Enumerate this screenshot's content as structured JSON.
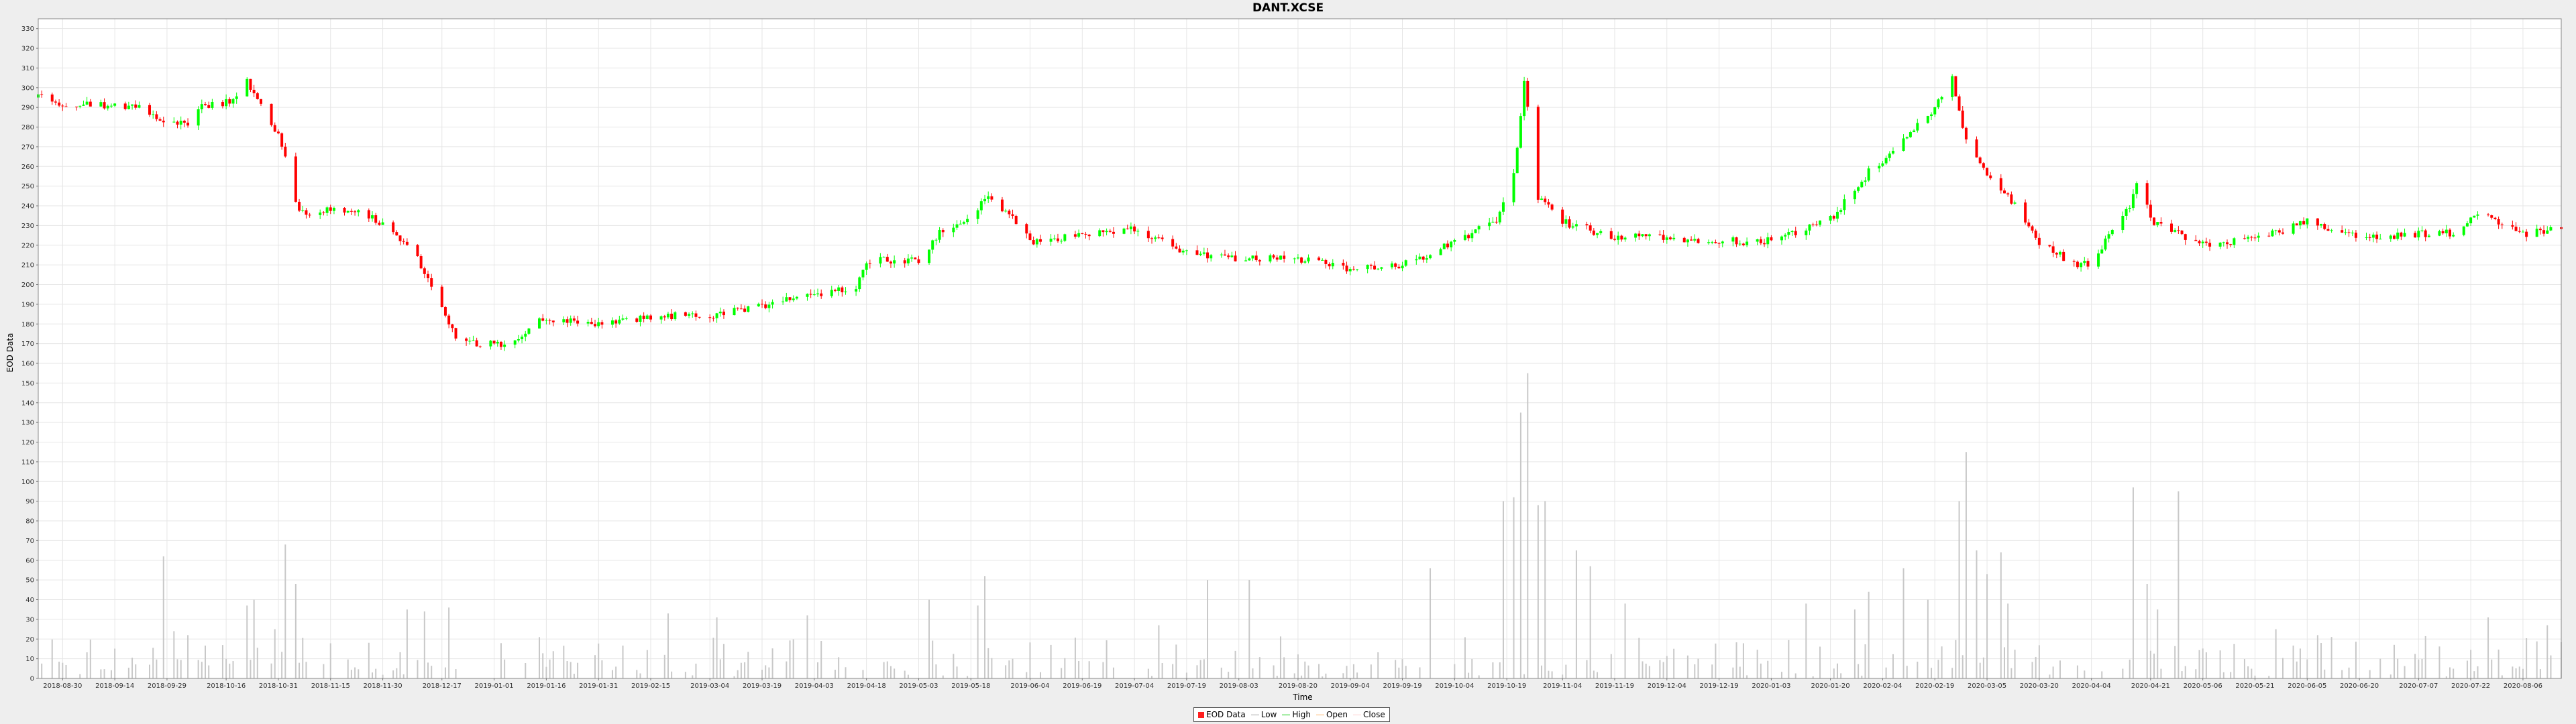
{
  "chart_data": {
    "type": "candlestick",
    "title": "DANT.XCSE",
    "xlabel": "Time",
    "ylabel": "EOD Data",
    "ylim": [
      0,
      335
    ],
    "y_ticks": [
      0,
      10,
      20,
      30,
      40,
      50,
      60,
      70,
      80,
      90,
      100,
      110,
      120,
      130,
      140,
      150,
      160,
      170,
      180,
      190,
      200,
      210,
      220,
      230,
      240,
      250,
      260,
      270,
      280,
      290,
      300,
      310,
      320,
      330
    ],
    "x_range": [
      "2018-08-23",
      "2020-08-17"
    ],
    "x_ticks": [
      "2018-08-30",
      "2018-09-14",
      "2018-09-29",
      "2018-10-16",
      "2018-10-31",
      "2018-11-15",
      "2018-11-30",
      "2018-12-17",
      "2019-01-01",
      "2019-01-16",
      "2019-01-31",
      "2019-02-15",
      "2019-03-04",
      "2019-03-19",
      "2019-04-03",
      "2019-04-18",
      "2019-05-03",
      "2019-05-18",
      "2019-06-04",
      "2019-06-19",
      "2019-07-04",
      "2019-07-19",
      "2019-08-03",
      "2019-08-20",
      "2019-09-04",
      "2019-09-19",
      "2019-10-04",
      "2019-10-19",
      "2019-11-04",
      "2019-11-19",
      "2019-12-04",
      "2019-12-19",
      "2020-01-03",
      "2020-01-20",
      "2020-02-04",
      "2020-02-19",
      "2020-03-05",
      "2020-03-20",
      "2020-04-04",
      "2020-04-21",
      "2020-05-06",
      "2020-05-21",
      "2020-06-05",
      "2020-06-20",
      "2020-07-07",
      "2020-07-22",
      "2020-08-06"
    ],
    "grid": true,
    "legend_position": "bottom-center",
    "price_keyframes": [
      [
        "2018-08-24",
        295
      ],
      [
        "2018-08-27",
        291
      ],
      [
        "2018-09-20",
        291
      ],
      [
        "2018-09-26",
        285
      ],
      [
        "2018-10-05",
        281
      ],
      [
        "2018-10-09",
        290
      ],
      [
        "2018-10-17",
        293
      ],
      [
        "2018-10-22",
        303
      ],
      [
        "2018-10-26",
        290
      ],
      [
        "2018-11-01",
        272
      ],
      [
        "2018-11-06",
        237
      ],
      [
        "2018-11-20",
        238
      ],
      [
        "2018-11-28",
        233
      ],
      [
        "2018-12-04",
        225
      ],
      [
        "2018-12-10",
        213
      ],
      [
        "2018-12-14",
        200
      ],
      [
        "2018-12-21",
        174
      ],
      [
        "2018-12-27",
        170
      ],
      [
        "2019-01-07",
        170
      ],
      [
        "2019-01-14",
        182
      ],
      [
        "2019-01-31",
        180
      ],
      [
        "2019-02-15",
        184
      ],
      [
        "2019-03-04",
        184
      ],
      [
        "2019-03-19",
        189
      ],
      [
        "2019-04-03",
        195
      ],
      [
        "2019-04-15",
        198
      ],
      [
        "2019-04-18",
        212
      ],
      [
        "2019-05-03",
        213
      ],
      [
        "2019-05-10",
        228
      ],
      [
        "2019-05-18",
        235
      ],
      [
        "2019-05-23",
        244
      ],
      [
        "2019-05-28",
        238
      ],
      [
        "2019-06-04",
        222
      ],
      [
        "2019-07-04",
        228
      ],
      [
        "2019-07-19",
        216
      ],
      [
        "2019-08-03",
        213
      ],
      [
        "2019-08-20",
        213
      ],
      [
        "2019-09-04",
        208
      ],
      [
        "2019-09-19",
        210
      ],
      [
        "2019-10-04",
        221
      ],
      [
        "2019-10-16",
        233
      ],
      [
        "2019-10-21",
        255
      ],
      [
        "2019-10-24",
        303
      ],
      [
        "2019-10-28",
        245
      ],
      [
        "2019-11-04",
        232
      ],
      [
        "2019-11-19",
        224
      ],
      [
        "2019-12-04",
        224
      ],
      [
        "2019-12-19",
        222
      ],
      [
        "2020-01-03",
        222
      ],
      [
        "2020-01-20",
        233
      ],
      [
        "2020-01-31",
        257
      ],
      [
        "2020-02-08",
        270
      ],
      [
        "2020-02-19",
        290
      ],
      [
        "2020-02-24",
        305
      ],
      [
        "2020-02-28",
        272
      ],
      [
        "2020-03-05",
        255
      ],
      [
        "2020-03-10",
        248
      ],
      [
        "2020-03-20",
        222
      ],
      [
        "2020-03-30",
        210
      ],
      [
        "2020-04-04",
        211
      ],
      [
        "2020-04-15",
        240
      ],
      [
        "2020-04-18",
        258
      ],
      [
        "2020-04-21",
        233
      ],
      [
        "2020-05-06",
        220
      ],
      [
        "2020-05-21",
        223
      ],
      [
        "2020-06-05",
        232
      ],
      [
        "2020-06-20",
        224
      ],
      [
        "2020-07-07",
        226
      ],
      [
        "2020-07-17",
        226
      ],
      [
        "2020-07-24",
        236
      ],
      [
        "2020-08-06",
        225
      ],
      [
        "2020-08-17",
        230
      ]
    ],
    "volume_spikes": [
      [
        "2018-09-28",
        62
      ],
      [
        "2018-10-01",
        24
      ],
      [
        "2018-10-05",
        22
      ],
      [
        "2018-10-22",
        37
      ],
      [
        "2018-10-24",
        40
      ],
      [
        "2018-10-30",
        25
      ],
      [
        "2018-11-02",
        68
      ],
      [
        "2018-11-05",
        48
      ],
      [
        "2018-12-07",
        35
      ],
      [
        "2018-12-12",
        34
      ],
      [
        "2018-12-19",
        36
      ],
      [
        "2019-01-14",
        21
      ],
      [
        "2019-02-20",
        33
      ],
      [
        "2019-03-06",
        31
      ],
      [
        "2019-04-01",
        32
      ],
      [
        "2019-05-06",
        40
      ],
      [
        "2019-05-20",
        37
      ],
      [
        "2019-05-22",
        52
      ],
      [
        "2019-07-11",
        27
      ],
      [
        "2019-07-25",
        50
      ],
      [
        "2019-08-06",
        50
      ],
      [
        "2019-09-27",
        56
      ],
      [
        "2019-10-18",
        90
      ],
      [
        "2019-10-21",
        92
      ],
      [
        "2019-10-23",
        135
      ],
      [
        "2019-10-25",
        155
      ],
      [
        "2019-10-28",
        88
      ],
      [
        "2019-10-30",
        90
      ],
      [
        "2019-11-08",
        65
      ],
      [
        "2019-11-12",
        57
      ],
      [
        "2019-11-22",
        38
      ],
      [
        "2020-01-13",
        38
      ],
      [
        "2020-01-27",
        35
      ],
      [
        "2020-01-31",
        44
      ],
      [
        "2020-02-10",
        56
      ],
      [
        "2020-02-17",
        40
      ],
      [
        "2020-02-26",
        90
      ],
      [
        "2020-02-28",
        115
      ],
      [
        "2020-03-02",
        65
      ],
      [
        "2020-03-05",
        53
      ],
      [
        "2020-03-09",
        64
      ],
      [
        "2020-03-11",
        38
      ],
      [
        "2020-04-16",
        97
      ],
      [
        "2020-04-20",
        48
      ],
      [
        "2020-04-23",
        35
      ],
      [
        "2020-04-29",
        95
      ],
      [
        "2020-05-27",
        25
      ],
      [
        "2020-06-08",
        22
      ],
      [
        "2020-07-27",
        31
      ],
      [
        "2020-08-13",
        27
      ]
    ]
  },
  "legend": {
    "eod_label": "EOD Data",
    "low_label": "Low",
    "high_label": "High",
    "open_label": "Open",
    "close_label": "Close"
  },
  "colors": {
    "up": "#00ff00",
    "down": "#ff0000",
    "volume": "#c8c8c8",
    "grid": "#e6e6e6",
    "plot_bg": "#ffffff",
    "page_bg": "#eeeeee",
    "low": "#a0a0a0",
    "high": "#00cc00",
    "open": "#ffb060",
    "close": "#ffcccc"
  }
}
